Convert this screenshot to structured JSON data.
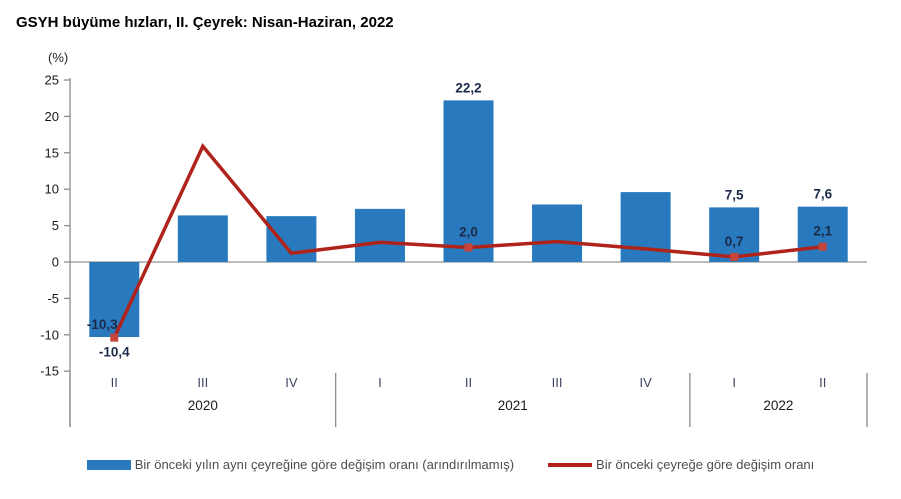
{
  "title": "GSYH büyüme hızları, II. Çeyrek: Nisan-Haziran, 2022",
  "axis_unit_label": "(%)",
  "colors": {
    "bar": "#2879BD",
    "line": "#AF231A",
    "marker": "#C6453B",
    "data_label": "#1C2B4A",
    "axis": "#8C8C8C",
    "zero_line": "#A6A6A6",
    "tick_label": "#1A1A1A",
    "category_label": "#3C4664",
    "year_label": "#1A1A1A"
  },
  "chart_data": {
    "type": "bar",
    "subtype": "bar+line combo",
    "title": "GSYH büyüme hızları, II. Çeyrek: Nisan-Haziran, 2022",
    "ylabel": "(%)",
    "xlabel": "",
    "categories": [
      "II",
      "III",
      "IV",
      "I",
      "II",
      "III",
      "IV",
      "I",
      "II"
    ],
    "year_groups": [
      {
        "label": "2020",
        "span": 3
      },
      {
        "label": "2021",
        "span": 4
      },
      {
        "label": "2022",
        "span": 2
      }
    ],
    "series": [
      {
        "name": "Bir önceki yılın aynı çeyreğine göre değişim oranı (arındırılmamış)",
        "type": "bar",
        "values": [
          -10.3,
          6.4,
          6.3,
          7.3,
          22.2,
          7.9,
          9.6,
          7.5,
          7.6
        ],
        "labeled_points": {
          "0": "-10,3",
          "4": "22,2",
          "7": "7,5",
          "8": "7,6"
        }
      },
      {
        "name": "Bir önceki çeyreğe göre değişim oranı",
        "type": "line",
        "values": [
          -10.4,
          15.9,
          1.2,
          2.7,
          2.0,
          2.8,
          1.8,
          0.7,
          2.1
        ],
        "labeled_points": {
          "0": "-10,4",
          "4": "2,0",
          "7": "0,7",
          "8": "2,1"
        }
      }
    ],
    "ylim": [
      -15,
      25
    ],
    "yticks": [
      25,
      20,
      15,
      10,
      5,
      0,
      -5,
      -10,
      -15
    ],
    "grid": false,
    "legend_position": "bottom"
  },
  "legend": {
    "items": [
      {
        "label": "Bir önceki yılın aynı çeyreğine göre değişim oranı (arındırılmamış)",
        "swatch": "bar"
      },
      {
        "label": "Bir önceki çeyreğe göre değişim oranı",
        "swatch": "line"
      }
    ]
  }
}
